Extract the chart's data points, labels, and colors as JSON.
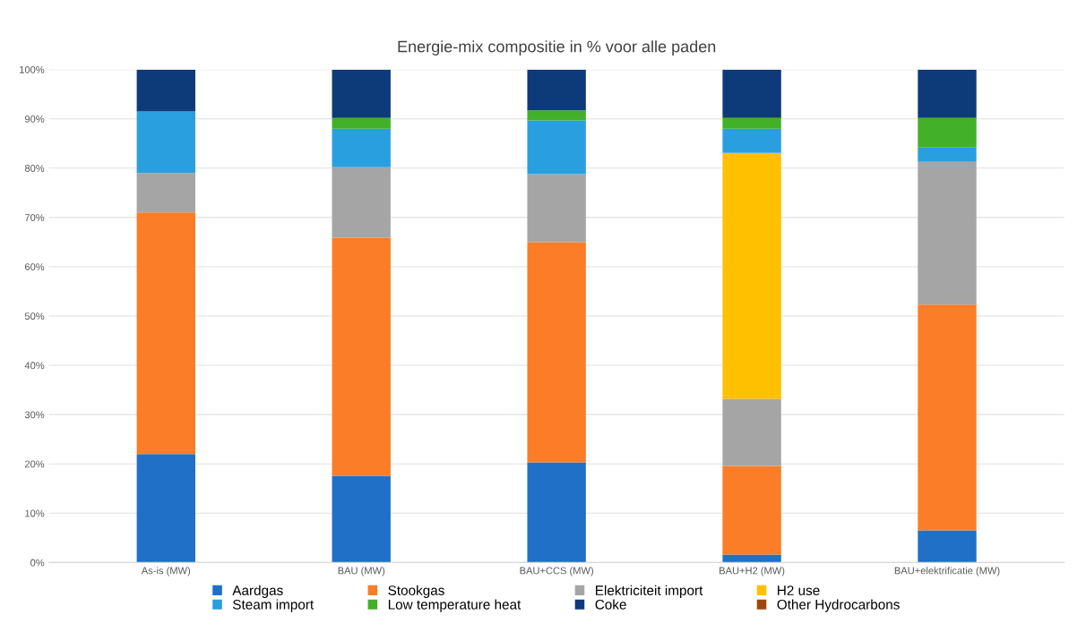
{
  "chart_data": {
    "type": "bar",
    "stacked": true,
    "title": "Energie-mix compositie in % voor alle paden",
    "categories": [
      "As-is (MW)",
      "BAU (MW)",
      "BAU+CCS (MW)",
      "BAU+H2 (MW)",
      "BAU+elektrificatie (MW)"
    ],
    "series": [
      {
        "name": "Aardgas",
        "color": "#2070c8",
        "values": [
          22,
          17.6,
          20.3,
          1.6,
          6.5
        ]
      },
      {
        "name": "Stookgas",
        "color": "#fb7d28",
        "values": [
          49,
          48.3,
          44.7,
          18,
          45.8
        ]
      },
      {
        "name": "Elektriciteit import",
        "color": "#a5a5a5",
        "values": [
          8,
          14.3,
          13.8,
          13.6,
          29
        ]
      },
      {
        "name": "H2 use",
        "color": "#ffc000",
        "values": [
          0,
          0,
          0,
          49.9,
          0
        ]
      },
      {
        "name": "Steam import",
        "color": "#2a9fdf",
        "values": [
          12.5,
          7.8,
          10.9,
          4.9,
          2.9
        ]
      },
      {
        "name": "Low temperature heat",
        "color": "#43b02a",
        "values": [
          0,
          2.2,
          2,
          2.2,
          6
        ]
      },
      {
        "name": "Coke",
        "color": "#0d3b7a",
        "values": [
          8.5,
          9.8,
          8.3,
          9.8,
          9.8
        ]
      },
      {
        "name": "Other Hydrocarbons",
        "color": "#9e480e",
        "values": [
          0,
          0,
          0,
          0,
          0
        ]
      }
    ],
    "ylim": [
      0,
      100
    ],
    "yticks": [
      {
        "value": 0,
        "label": "0%"
      },
      {
        "value": 10,
        "label": "10%"
      },
      {
        "value": 20,
        "label": "20%"
      },
      {
        "value": 30,
        "label": "30%"
      },
      {
        "value": 40,
        "label": "40%"
      },
      {
        "value": 50,
        "label": "50%"
      },
      {
        "value": 60,
        "label": "60%"
      },
      {
        "value": 70,
        "label": "70%"
      },
      {
        "value": 80,
        "label": "80%"
      },
      {
        "value": 90,
        "label": "90%"
      },
      {
        "value": 100,
        "label": "100%"
      }
    ],
    "grid": "y",
    "legend": "bottom"
  }
}
